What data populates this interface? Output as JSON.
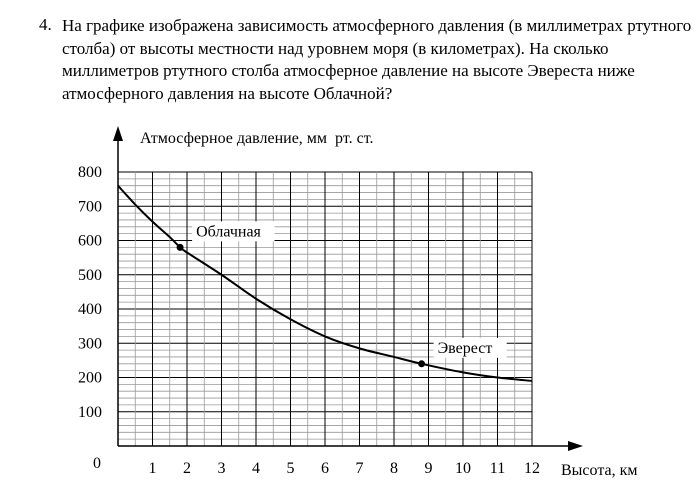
{
  "question": {
    "number": "4.",
    "text": "На графике изображена зависимость атмосферного давления (в миллиметрах ртутного столба) от высоты местности над уровнем моря (в километрах). На сколько миллиметров ртутного столба атмосферное давление на высоте Эвереста ниже атмосферного давления на высоте Облачной?"
  },
  "chart_data": {
    "type": "line",
    "ylabel": "Атмосферное давление, мм  рт. ст.",
    "xlabel": "Высота, км",
    "xlim": [
      0,
      12
    ],
    "ylim": [
      0,
      800
    ],
    "x_ticks": [
      "1",
      "2",
      "3",
      "4",
      "5",
      "6",
      "7",
      "8",
      "9",
      "10",
      "11",
      "12"
    ],
    "y_ticks": [
      "100",
      "200",
      "300",
      "400",
      "500",
      "600",
      "700",
      "800"
    ],
    "origin_label": "0",
    "grid": true,
    "x": [
      0,
      0.5,
      1,
      1.5,
      1.8,
      2,
      3,
      4,
      5,
      6,
      7,
      8,
      8.8,
      10,
      11,
      12
    ],
    "y": [
      760,
      705,
      655,
      610,
      580,
      565,
      500,
      430,
      370,
      320,
      285,
      260,
      240,
      215,
      200,
      190
    ],
    "annotations": [
      {
        "label": "Облачная",
        "x": 1.8,
        "y": 580
      },
      {
        "label": "Эверест",
        "x": 8.8,
        "y": 240
      }
    ]
  }
}
